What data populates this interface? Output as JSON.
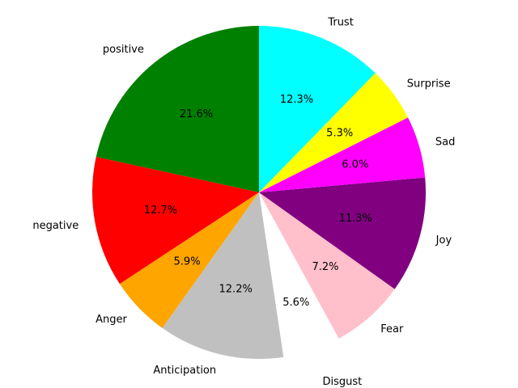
{
  "chart_data": {
    "type": "pie",
    "start_angle_deg": 90,
    "direction": "counterclockwise",
    "slices": [
      {
        "label": "positive",
        "value": 21.6,
        "pct_text": "21.6%",
        "color": "#008000",
        "explode": false
      },
      {
        "label": "negative",
        "value": 12.7,
        "pct_text": "12.7%",
        "color": "#ff0000",
        "explode": false
      },
      {
        "label": "Anger",
        "value": 5.9,
        "pct_text": "5.9%",
        "color": "#ffa500",
        "explode": false
      },
      {
        "label": "Anticipation",
        "value": 12.2,
        "pct_text": "12.2%",
        "color": "#c0c0c0",
        "explode": false
      },
      {
        "label": "Disgust",
        "value": 5.6,
        "pct_text": "5.6%",
        "color": "#ffffff",
        "explode": true
      },
      {
        "label": "Fear",
        "value": 7.2,
        "pct_text": "7.2%",
        "color": "#ffc0cb",
        "explode": false
      },
      {
        "label": "Joy",
        "value": 11.3,
        "pct_text": "11.3%",
        "color": "#800080",
        "explode": false
      },
      {
        "label": "Sad",
        "value": 6.0,
        "pct_text": "6.0%",
        "color": "#ff00ff",
        "explode": false
      },
      {
        "label": "Surprise",
        "value": 5.3,
        "pct_text": "5.3%",
        "color": "#ffff00",
        "explode": false
      },
      {
        "label": "Trust",
        "value": 12.3,
        "pct_text": "12.3%",
        "color": "#00ffff",
        "explode": false
      }
    ]
  }
}
